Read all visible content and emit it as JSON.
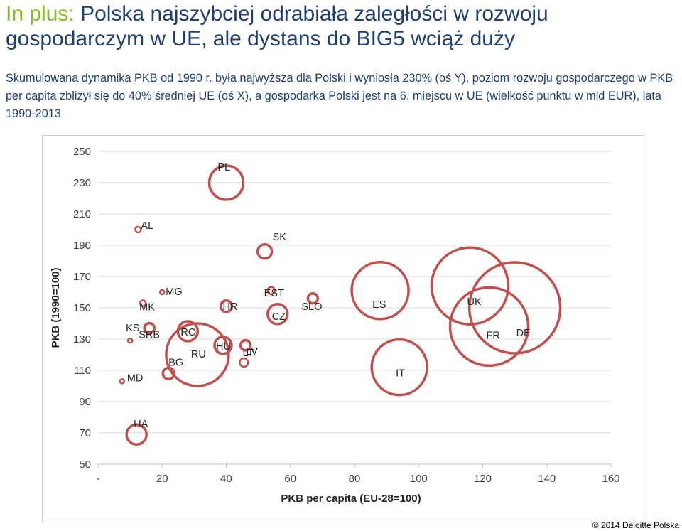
{
  "header": {
    "title_lead": "In plus:",
    "title_rest": " Polska najszybciej odrabiała zaległości w rozwoju gospodarczym w UE, ale dystans do BIG5 wciąż duży",
    "subtitle": "Skumulowana dynamika PKB od 1990 r. była najwyższa dla Polski i wyniosła 230% (oś Y), poziom rozwoju gospodarczego  w PKB per capita zbliżył się do 40% średniej UE (oś X), a gospodarka Polski jest na 6. miejscu w UE (wielkość punktu w mld EUR), lata 1990-2013"
  },
  "colors": {
    "bubble": "#c0504d",
    "title_accent": "#86bc25",
    "title": "#1f3f6e",
    "grid": "#d9d9d9"
  },
  "chart_data": {
    "type": "scatter",
    "subtype": "bubble",
    "xlabel": "PKB per capita (EU-28=100)",
    "ylabel": "PKB (1990=100)",
    "xlim": [
      0,
      160
    ],
    "ylim": [
      50,
      250
    ],
    "xticks": [
      "-",
      "20",
      "40",
      "60",
      "80",
      "100",
      "120",
      "140",
      "160"
    ],
    "yticks": [
      "50",
      "70",
      "90",
      "110",
      "130",
      "150",
      "170",
      "190",
      "210",
      "230",
      "250"
    ],
    "grid": "horizontal",
    "points": [
      {
        "label": "PL",
        "x": 40,
        "y": 230,
        "r": 24,
        "lx": -12,
        "ly": 17
      },
      {
        "label": "AL",
        "x": 12.5,
        "y": 200,
        "r": 4,
        "lx": 4,
        "ly": 1
      },
      {
        "label": "SK",
        "x": 52,
        "y": 186,
        "r": 10,
        "lx": 11,
        "ly": 16
      },
      {
        "label": "UK",
        "x": 116,
        "y": 164,
        "r": 54,
        "lx": -4,
        "ly": -27
      },
      {
        "label": "DE",
        "x": 130,
        "y": 150,
        "r": 64,
        "lx": 2,
        "ly": -40
      },
      {
        "label": "ES",
        "x": 88,
        "y": 161,
        "r": 40,
        "lx": -11,
        "ly": -24
      },
      {
        "label": "SLO",
        "x": 67,
        "y": 156,
        "r": 7,
        "lx": -16,
        "ly": -16
      },
      {
        "label": "EST",
        "x": 54,
        "y": 161,
        "r": 5,
        "lx": -10,
        "ly": -8
      },
      {
        "label": "MG",
        "x": 20,
        "y": 160,
        "r": 3,
        "lx": 5,
        "ly": -4
      },
      {
        "label": "MK",
        "x": 14,
        "y": 153,
        "r": 4,
        "lx": -5,
        "ly": -10
      },
      {
        "label": "HR",
        "x": 40,
        "y": 151,
        "r": 8,
        "lx": -5,
        "ly": -5
      },
      {
        "label": "CZ",
        "x": 56,
        "y": 146,
        "r": 14,
        "lx": -8,
        "ly": -8
      },
      {
        "label": "FR",
        "x": 122,
        "y": 138,
        "r": 55,
        "lx": -4,
        "ly": -17
      },
      {
        "label": "SRB",
        "x": 16,
        "y": 137,
        "r": 7,
        "lx": -15,
        "ly": -14
      },
      {
        "label": "RO",
        "x": 28,
        "y": 135,
        "r": 14,
        "lx": -10,
        "ly": -6
      },
      {
        "label": "KS",
        "x": 10,
        "y": 129,
        "r": 3,
        "lx": -6,
        "ly": 13
      },
      {
        "label": "LT",
        "x": 46,
        "y": 126,
        "r": 7,
        "lx": -4,
        "ly": -15
      },
      {
        "label": "HU",
        "x": 39,
        "y": 126,
        "r": 12,
        "lx": -10,
        "ly": -6
      },
      {
        "label": "RU",
        "x": 31,
        "y": 120,
        "r": 44,
        "lx": -9,
        "ly": -4
      },
      {
        "label": "IT",
        "x": 94,
        "y": 112,
        "r": 39,
        "lx": -5,
        "ly": -13
      },
      {
        "label": "LV",
        "x": 45.5,
        "y": 115,
        "r": 6,
        "lx": 3,
        "ly": 11
      },
      {
        "label": "BG",
        "x": 22,
        "y": 108,
        "r": 8,
        "lx": 0,
        "ly": 11
      },
      {
        "label": "MD",
        "x": 7.5,
        "y": 103,
        "r": 3,
        "lx": 7,
        "ly": 0
      },
      {
        "label": "UA",
        "x": 12,
        "y": 69,
        "r": 14,
        "lx": -4,
        "ly": 10
      }
    ]
  },
  "footer": {
    "copyright": "© 2014 Deloitte Polska"
  }
}
